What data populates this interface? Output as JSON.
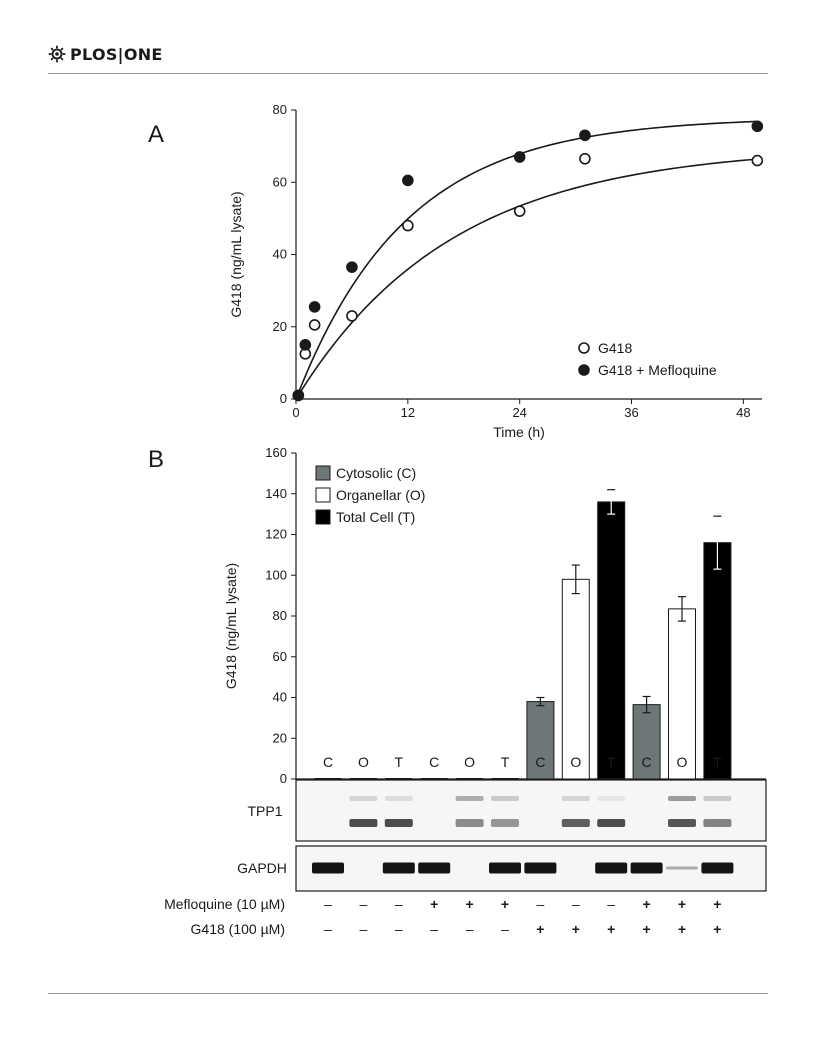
{
  "header": {
    "journal_left": "PLOS",
    "journal_right": "ONE",
    "journal_name": "PLOS|ONE"
  },
  "panel_a": {
    "label": "A",
    "chart_data": {
      "type": "scatter",
      "xlabel": "Time (h)",
      "ylabel": "G418 (ng/mL lysate)",
      "xlim": [
        0,
        50
      ],
      "ylim": [
        0,
        80
      ],
      "xticks": [
        "0",
        "12",
        "24",
        "36",
        "48"
      ],
      "yticks": [
        "0",
        "20",
        "40",
        "60",
        "80"
      ],
      "legend_placement": "bottom-right",
      "series": [
        {
          "name": "G418",
          "marker": "open-circle",
          "x": [
            0.25,
            1,
            2,
            6,
            12,
            24,
            31,
            49.5
          ],
          "y": [
            1,
            12.5,
            20.5,
            23,
            48,
            52,
            66.5,
            66
          ]
        },
        {
          "name": "G418 + Mefloquine",
          "marker": "filled-circle",
          "x": [
            0.25,
            1,
            2,
            6,
            12,
            24,
            31,
            49.5
          ],
          "y": [
            1,
            15,
            25.5,
            36.5,
            60.5,
            67,
            73,
            75.5
          ]
        }
      ],
      "fit_curves": [
        {
          "series": "G418",
          "plateau": 70,
          "k": 0.06
        },
        {
          "series": "G418 + Mefloquine",
          "plateau": 78,
          "k": 0.085
        }
      ]
    }
  },
  "panel_b": {
    "label": "B",
    "chart_data": {
      "type": "bar",
      "ylabel": "G418 (ng/mL lysate)",
      "ylim": [
        0,
        160
      ],
      "yticks": [
        "0",
        "20",
        "40",
        "60",
        "80",
        "100",
        "120",
        "140",
        "160"
      ],
      "legend_placement": "top-left",
      "categories": [
        "C",
        "O",
        "T",
        "C",
        "O",
        "T",
        "C",
        "O",
        "T",
        "C",
        "O",
        "T"
      ],
      "values": [
        0,
        0,
        0,
        0,
        0,
        0,
        38,
        98,
        136,
        36.5,
        83.5,
        116
      ],
      "errors": [
        0,
        0,
        0,
        0,
        0,
        0,
        2,
        7,
        6,
        4,
        6,
        13
      ],
      "bar_fraction": [
        "Cytosolic (C)",
        "Organellar (O)",
        "Total Cell (T)",
        "Cytosolic (C)",
        "Organellar (O)",
        "Total Cell (T)",
        "Cytosolic (C)",
        "Organellar (O)",
        "Total Cell (T)",
        "Cytosolic (C)",
        "Organellar (O)",
        "Total Cell (T)"
      ],
      "legend": [
        {
          "name": "Cytosolic (C)",
          "color": "#6e7778"
        },
        {
          "name": "Organellar (O)",
          "color": "#ffffff"
        },
        {
          "name": "Total Cell (T)",
          "color": "#000000"
        }
      ]
    },
    "blots": {
      "tpp1_label": "TPP1",
      "gapdh_label": "GAPDH",
      "tpp1_upper": [
        0,
        0.15,
        0.1,
        0,
        0.35,
        0.2,
        0,
        0.15,
        0.05,
        0,
        0.45,
        0.2
      ],
      "tpp1_lower": [
        0,
        0.85,
        0.85,
        0,
        0.5,
        0.45,
        0,
        0.75,
        0.85,
        0,
        0.8,
        0.55
      ],
      "gapdh": [
        0.95,
        0,
        0.95,
        0.95,
        0,
        0.95,
        0.95,
        0,
        0.95,
        0.95,
        0.15,
        0.95
      ]
    },
    "treatments": [
      {
        "label": "Mefloquine (10 µM)",
        "values": [
          "–",
          "–",
          "–",
          "+",
          "+",
          "+",
          "–",
          "–",
          "–",
          "+",
          "+",
          "+"
        ]
      },
      {
        "label": "G418 (100 µM)",
        "values": [
          "–",
          "–",
          "–",
          "–",
          "–",
          "–",
          "+",
          "+",
          "+",
          "+",
          "+",
          "+"
        ]
      }
    ]
  }
}
